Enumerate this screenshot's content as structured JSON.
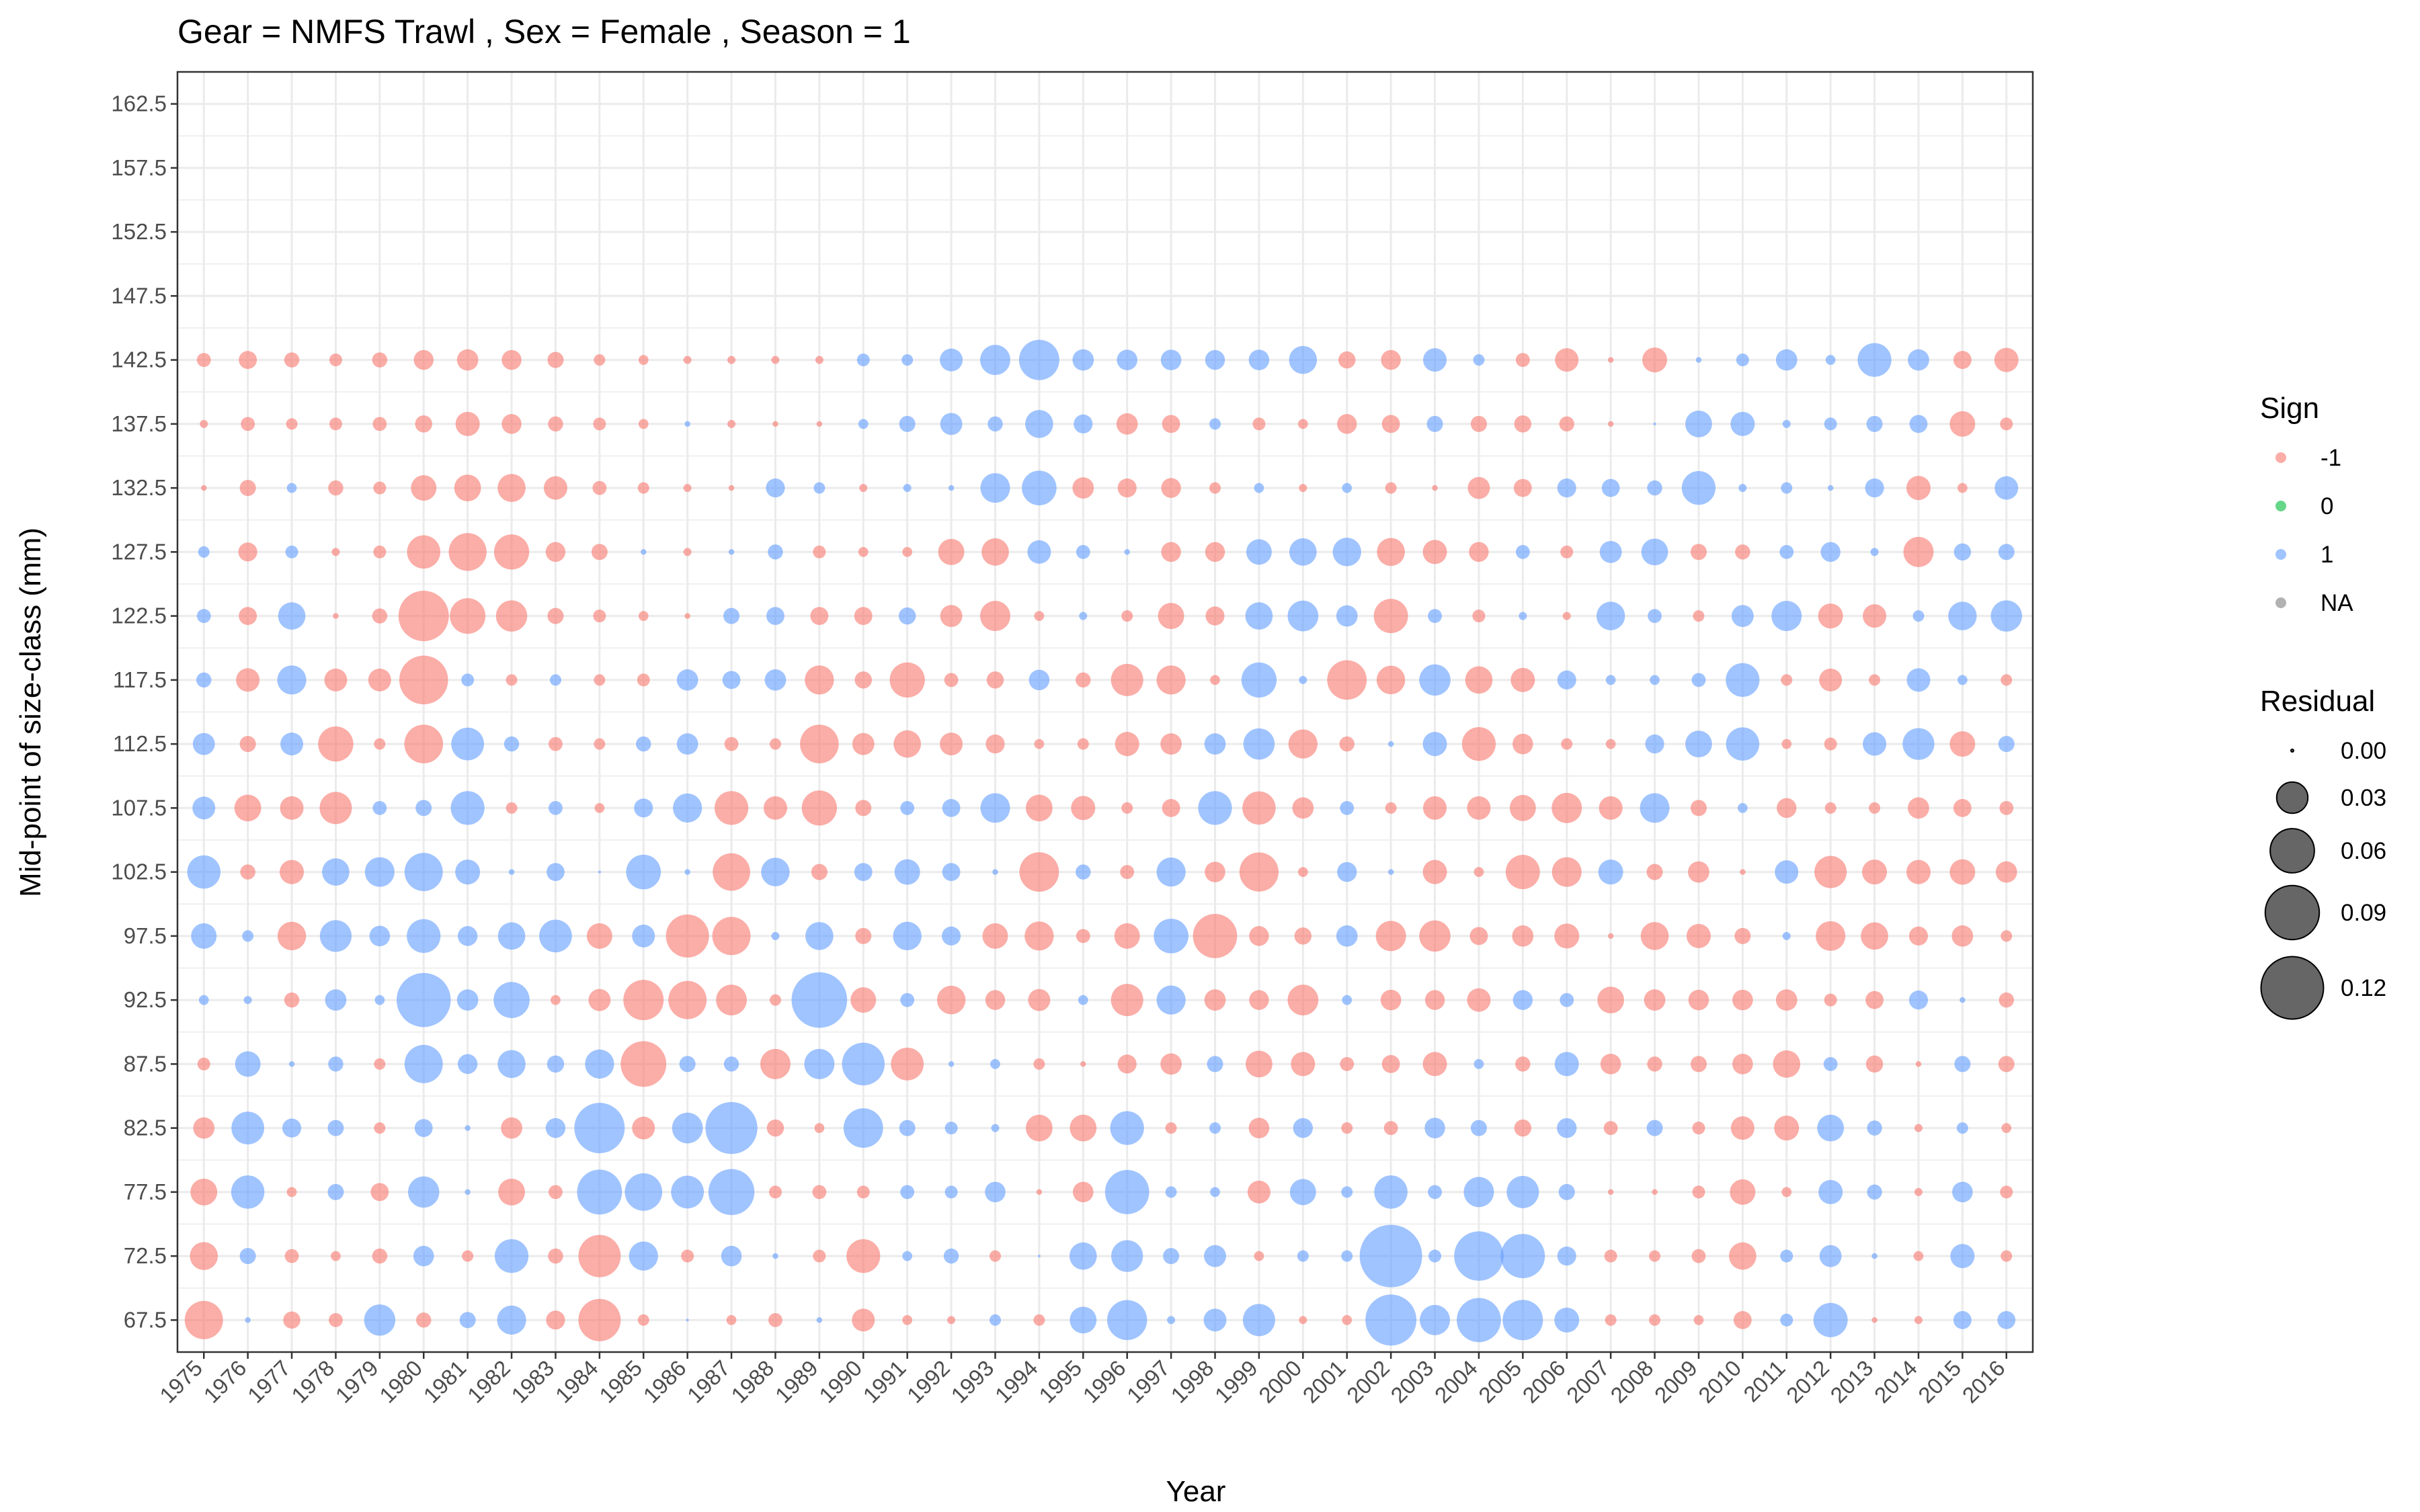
{
  "chart_data": {
    "type": "bubble",
    "title": "Gear = NMFS Trawl , Sex = Female , Season = 1",
    "xlabel": "Year",
    "ylabel": "Mid-point of size-class (mm)",
    "x_ticks": [
      1975,
      1976,
      1977,
      1978,
      1979,
      1980,
      1981,
      1982,
      1983,
      1984,
      1985,
      1986,
      1987,
      1988,
      1989,
      1990,
      1991,
      1992,
      1993,
      1994,
      1995,
      1996,
      1997,
      1998,
      1999,
      2000,
      2001,
      2002,
      2003,
      2004,
      2005,
      2006,
      2007,
      2008,
      2009,
      2010,
      2011,
      2012,
      2013,
      2014,
      2015,
      2016
    ],
    "y_ticks": [
      67.5,
      72.5,
      77.5,
      82.5,
      87.5,
      92.5,
      97.5,
      102.5,
      107.5,
      112.5,
      117.5,
      122.5,
      127.5,
      132.5,
      137.5,
      142.5,
      147.5,
      152.5,
      157.5,
      162.5
    ],
    "xlim": [
      1974.4,
      2016.6
    ],
    "ylim": [
      65,
      165
    ],
    "grid": true,
    "legend_position": "right",
    "sign_legend": {
      "title": "Sign",
      "entries": [
        {
          "label": "-1",
          "color": "#F8766D"
        },
        {
          "label": "0",
          "color": "#00BA38"
        },
        {
          "label": "1",
          "color": "#619CFF"
        },
        {
          "label": "NA",
          "color": "#7F7F7F"
        }
      ]
    },
    "size_legend": {
      "title": "Residual",
      "entries": [
        {
          "label": "0.00",
          "value": 0.0
        },
        {
          "label": "0.03",
          "value": 0.03
        },
        {
          "label": "0.06",
          "value": 0.06
        },
        {
          "label": "0.09",
          "value": 0.09
        },
        {
          "label": "0.12",
          "value": 0.12
        }
      ]
    },
    "size_max_value": 0.128,
    "y_rows": [
      142.5,
      137.5,
      132.5,
      127.5,
      122.5,
      117.5,
      112.5,
      107.5,
      102.5,
      97.5,
      92.5,
      87.5,
      82.5,
      77.5,
      72.5,
      67.5
    ],
    "residuals": [
      [
        -0.006,
        -0.01,
        -0.007,
        -0.005,
        -0.007,
        -0.012,
        -0.014,
        -0.012,
        -0.008,
        -0.004,
        -0.003,
        -0.002,
        -0.002,
        -0.002,
        -0.002,
        0.005,
        0.004,
        0.016,
        0.028,
        0.05,
        0.014,
        0.013,
        0.013,
        0.012,
        0.013,
        0.024,
        -0.009,
        -0.012,
        0.017,
        0.004,
        -0.006,
        -0.017,
        -0.001,
        -0.019,
        0.001,
        0.005,
        0.014,
        0.003,
        0.035,
        0.014,
        -0.01,
        -0.018
      ],
      [
        -0.002,
        -0.006,
        -0.004,
        -0.005,
        -0.006,
        -0.009,
        -0.018,
        -0.012,
        -0.007,
        -0.005,
        -0.003,
        0.001,
        -0.002,
        -0.001,
        -0.001,
        0.003,
        0.008,
        0.015,
        0.007,
        0.024,
        0.011,
        -0.014,
        -0.01,
        0.004,
        -0.005,
        -0.003,
        -0.012,
        -0.01,
        0.008,
        -0.008,
        -0.009,
        -0.007,
        -0.001,
        0.0,
        0.022,
        0.018,
        0.002,
        0.005,
        0.008,
        0.01,
        -0.02,
        -0.005
      ],
      [
        -0.001,
        -0.008,
        0.003,
        -0.007,
        -0.005,
        -0.02,
        -0.022,
        -0.024,
        -0.017,
        -0.006,
        -0.004,
        -0.002,
        -0.001,
        0.011,
        0.004,
        -0.002,
        0.002,
        0.001,
        0.027,
        0.037,
        -0.014,
        -0.011,
        -0.012,
        -0.004,
        0.003,
        -0.002,
        0.003,
        -0.004,
        -0.001,
        -0.015,
        -0.01,
        0.011,
        0.01,
        0.007,
        0.035,
        0.002,
        0.004,
        0.001,
        0.011,
        -0.018,
        -0.003,
        0.017
      ],
      [
        0.004,
        -0.011,
        0.005,
        -0.002,
        -0.005,
        -0.034,
        -0.044,
        -0.038,
        -0.012,
        -0.008,
        0.001,
        -0.002,
        0.001,
        0.007,
        -0.005,
        -0.003,
        -0.003,
        -0.021,
        -0.023,
        0.017,
        0.006,
        0.001,
        -0.012,
        -0.012,
        0.02,
        0.023,
        0.025,
        -0.024,
        -0.018,
        -0.012,
        0.006,
        -0.005,
        0.015,
        0.022,
        -0.008,
        -0.007,
        0.006,
        0.012,
        0.002,
        -0.028,
        0.009,
        0.008
      ],
      [
        0.006,
        -0.01,
        0.023,
        -0.001,
        -0.007,
        -0.078,
        -0.039,
        -0.03,
        -0.008,
        -0.005,
        -0.003,
        -0.001,
        0.008,
        0.01,
        -0.01,
        -0.01,
        0.009,
        -0.015,
        -0.028,
        -0.003,
        0.002,
        -0.004,
        -0.021,
        -0.011,
        0.023,
        0.029,
        0.014,
        -0.036,
        0.006,
        -0.005,
        0.002,
        -0.002,
        0.025,
        0.006,
        -0.004,
        0.015,
        0.028,
        -0.019,
        -0.017,
        0.004,
        0.025,
        0.03
      ],
      [
        0.007,
        -0.017,
        0.026,
        -0.016,
        -0.016,
        -0.073,
        0.005,
        -0.004,
        0.004,
        -0.004,
        -0.005,
        0.014,
        0.01,
        0.014,
        -0.026,
        -0.009,
        -0.038,
        -0.006,
        -0.009,
        0.013,
        -0.007,
        -0.032,
        -0.026,
        -0.003,
        0.038,
        0.002,
        -0.048,
        -0.025,
        0.03,
        -0.023,
        -0.018,
        0.011,
        0.003,
        0.003,
        0.006,
        0.035,
        -0.004,
        -0.016,
        -0.004,
        0.017,
        0.003,
        -0.004
      ],
      [
        0.015,
        -0.008,
        0.016,
        -0.038,
        -0.004,
        -0.046,
        0.033,
        0.007,
        -0.006,
        -0.004,
        0.007,
        0.014,
        -0.006,
        -0.004,
        -0.046,
        -0.015,
        -0.023,
        -0.016,
        -0.011,
        -0.003,
        -0.004,
        -0.018,
        -0.014,
        0.014,
        0.03,
        -0.026,
        -0.007,
        0.001,
        0.018,
        -0.035,
        -0.013,
        -0.004,
        -0.003,
        0.011,
        0.022,
        0.034,
        -0.003,
        -0.005,
        0.017,
        0.031,
        -0.02,
        0.008
      ],
      [
        0.016,
        -0.022,
        -0.017,
        -0.032,
        0.006,
        0.008,
        0.035,
        -0.004,
        0.006,
        -0.003,
        0.011,
        0.026,
        -0.035,
        -0.017,
        -0.038,
        -0.008,
        0.006,
        0.01,
        0.027,
        -0.022,
        -0.018,
        -0.004,
        -0.01,
        0.035,
        -0.034,
        -0.014,
        0.006,
        -0.004,
        -0.017,
        -0.017,
        -0.021,
        -0.028,
        -0.017,
        0.027,
        -0.008,
        0.003,
        -0.012,
        -0.004,
        -0.004,
        -0.014,
        -0.01,
        -0.006
      ],
      [
        0.034,
        -0.007,
        -0.018,
        0.023,
        0.027,
        0.045,
        0.019,
        0.001,
        0.01,
        0.0,
        0.037,
        0.001,
        -0.043,
        0.025,
        -0.008,
        0.01,
        0.02,
        0.01,
        0.001,
        -0.048,
        0.007,
        -0.006,
        0.026,
        -0.013,
        -0.047,
        -0.003,
        0.012,
        0.001,
        -0.018,
        -0.003,
        -0.036,
        -0.027,
        0.019,
        -0.008,
        -0.014,
        -0.001,
        0.017,
        -0.032,
        -0.019,
        -0.018,
        -0.02,
        -0.014
      ],
      [
        0.02,
        0.004,
        -0.025,
        0.031,
        0.013,
        0.035,
        0.012,
        0.023,
        0.033,
        -0.02,
        0.016,
        -0.057,
        -0.045,
        0.002,
        0.024,
        -0.008,
        0.025,
        0.011,
        -0.02,
        -0.026,
        -0.006,
        -0.02,
        0.037,
        -0.06,
        -0.012,
        -0.009,
        0.014,
        -0.028,
        -0.03,
        -0.01,
        -0.014,
        -0.019,
        -0.001,
        -0.024,
        -0.018,
        -0.008,
        0.002,
        -0.027,
        -0.023,
        -0.011,
        -0.014,
        -0.004
      ],
      [
        0.003,
        0.002,
        -0.007,
        0.014,
        0.003,
        0.09,
        0.014,
        0.04,
        -0.003,
        -0.015,
        -0.05,
        -0.045,
        -0.029,
        -0.004,
        0.095,
        -0.02,
        0.006,
        -0.025,
        -0.012,
        -0.015,
        0.003,
        -0.032,
        0.026,
        -0.014,
        -0.012,
        -0.029,
        0.003,
        -0.013,
        -0.012,
        -0.017,
        0.012,
        0.006,
        -0.022,
        -0.014,
        -0.013,
        -0.013,
        -0.014,
        -0.005,
        -0.01,
        0.011,
        0.001,
        -0.007
      ],
      [
        -0.005,
        0.02,
        0.001,
        0.007,
        -0.004,
        0.045,
        0.012,
        0.024,
        0.009,
        0.026,
        -0.064,
        0.008,
        0.007,
        -0.028,
        0.028,
        0.056,
        -0.033,
        0.001,
        0.003,
        -0.004,
        -0.001,
        -0.011,
        -0.014,
        0.008,
        -0.022,
        -0.018,
        -0.006,
        -0.01,
        -0.018,
        0.003,
        -0.007,
        0.018,
        -0.013,
        -0.007,
        -0.008,
        -0.013,
        -0.023,
        0.006,
        -0.009,
        -0.001,
        0.008,
        -0.008
      ],
      [
        -0.014,
        0.033,
        0.011,
        0.008,
        -0.004,
        0.01,
        0.001,
        -0.014,
        0.012,
        0.078,
        -0.016,
        0.029,
        0.083,
        -0.009,
        -0.003,
        0.048,
        0.008,
        0.005,
        0.002,
        -0.022,
        -0.022,
        0.035,
        -0.004,
        0.004,
        -0.013,
        0.012,
        -0.004,
        -0.006,
        0.013,
        0.008,
        -0.009,
        0.012,
        -0.006,
        0.008,
        -0.005,
        -0.017,
        -0.019,
        0.022,
        0.007,
        -0.002,
        0.004,
        -0.003
      ],
      [
        -0.022,
        0.034,
        -0.003,
        0.008,
        -0.01,
        0.03,
        0.001,
        -0.022,
        -0.006,
        0.062,
        0.043,
        0.033,
        0.065,
        -0.005,
        -0.006,
        -0.005,
        0.006,
        0.005,
        0.013,
        -0.001,
        -0.013,
        0.06,
        0.004,
        0.003,
        -0.016,
        0.021,
        0.004,
        0.034,
        0.006,
        0.028,
        0.032,
        0.008,
        -0.001,
        -0.001,
        -0.005,
        -0.02,
        -0.003,
        0.018,
        0.007,
        -0.002,
        0.013,
        -0.005
      ],
      [
        -0.024,
        0.008,
        -0.006,
        -0.003,
        -0.007,
        0.013,
        -0.004,
        0.035,
        -0.007,
        -0.055,
        0.026,
        -0.005,
        0.013,
        0.001,
        -0.005,
        -0.035,
        0.003,
        0.007,
        -0.004,
        0.0,
        0.023,
        0.031,
        0.008,
        0.015,
        -0.003,
        0.004,
        0.004,
        0.12,
        0.005,
        0.075,
        0.06,
        0.011,
        -0.005,
        -0.004,
        -0.006,
        -0.023,
        0.005,
        0.015,
        0.001,
        -0.003,
        0.018,
        -0.004
      ],
      [
        -0.045,
        0.001,
        -0.009,
        -0.006,
        0.03,
        -0.007,
        0.008,
        0.026,
        -0.011,
        -0.055,
        -0.004,
        0.0,
        -0.003,
        -0.006,
        0.001,
        -0.016,
        -0.003,
        -0.002,
        0.004,
        -0.004,
        0.022,
        0.049,
        0.002,
        0.016,
        0.032,
        -0.002,
        -0.003,
        0.08,
        0.028,
        0.06,
        0.05,
        0.019,
        -0.004,
        -0.004,
        -0.003,
        -0.01,
        0.005,
        0.036,
        -0.001,
        -0.002,
        0.01,
        0.01
      ]
    ]
  }
}
